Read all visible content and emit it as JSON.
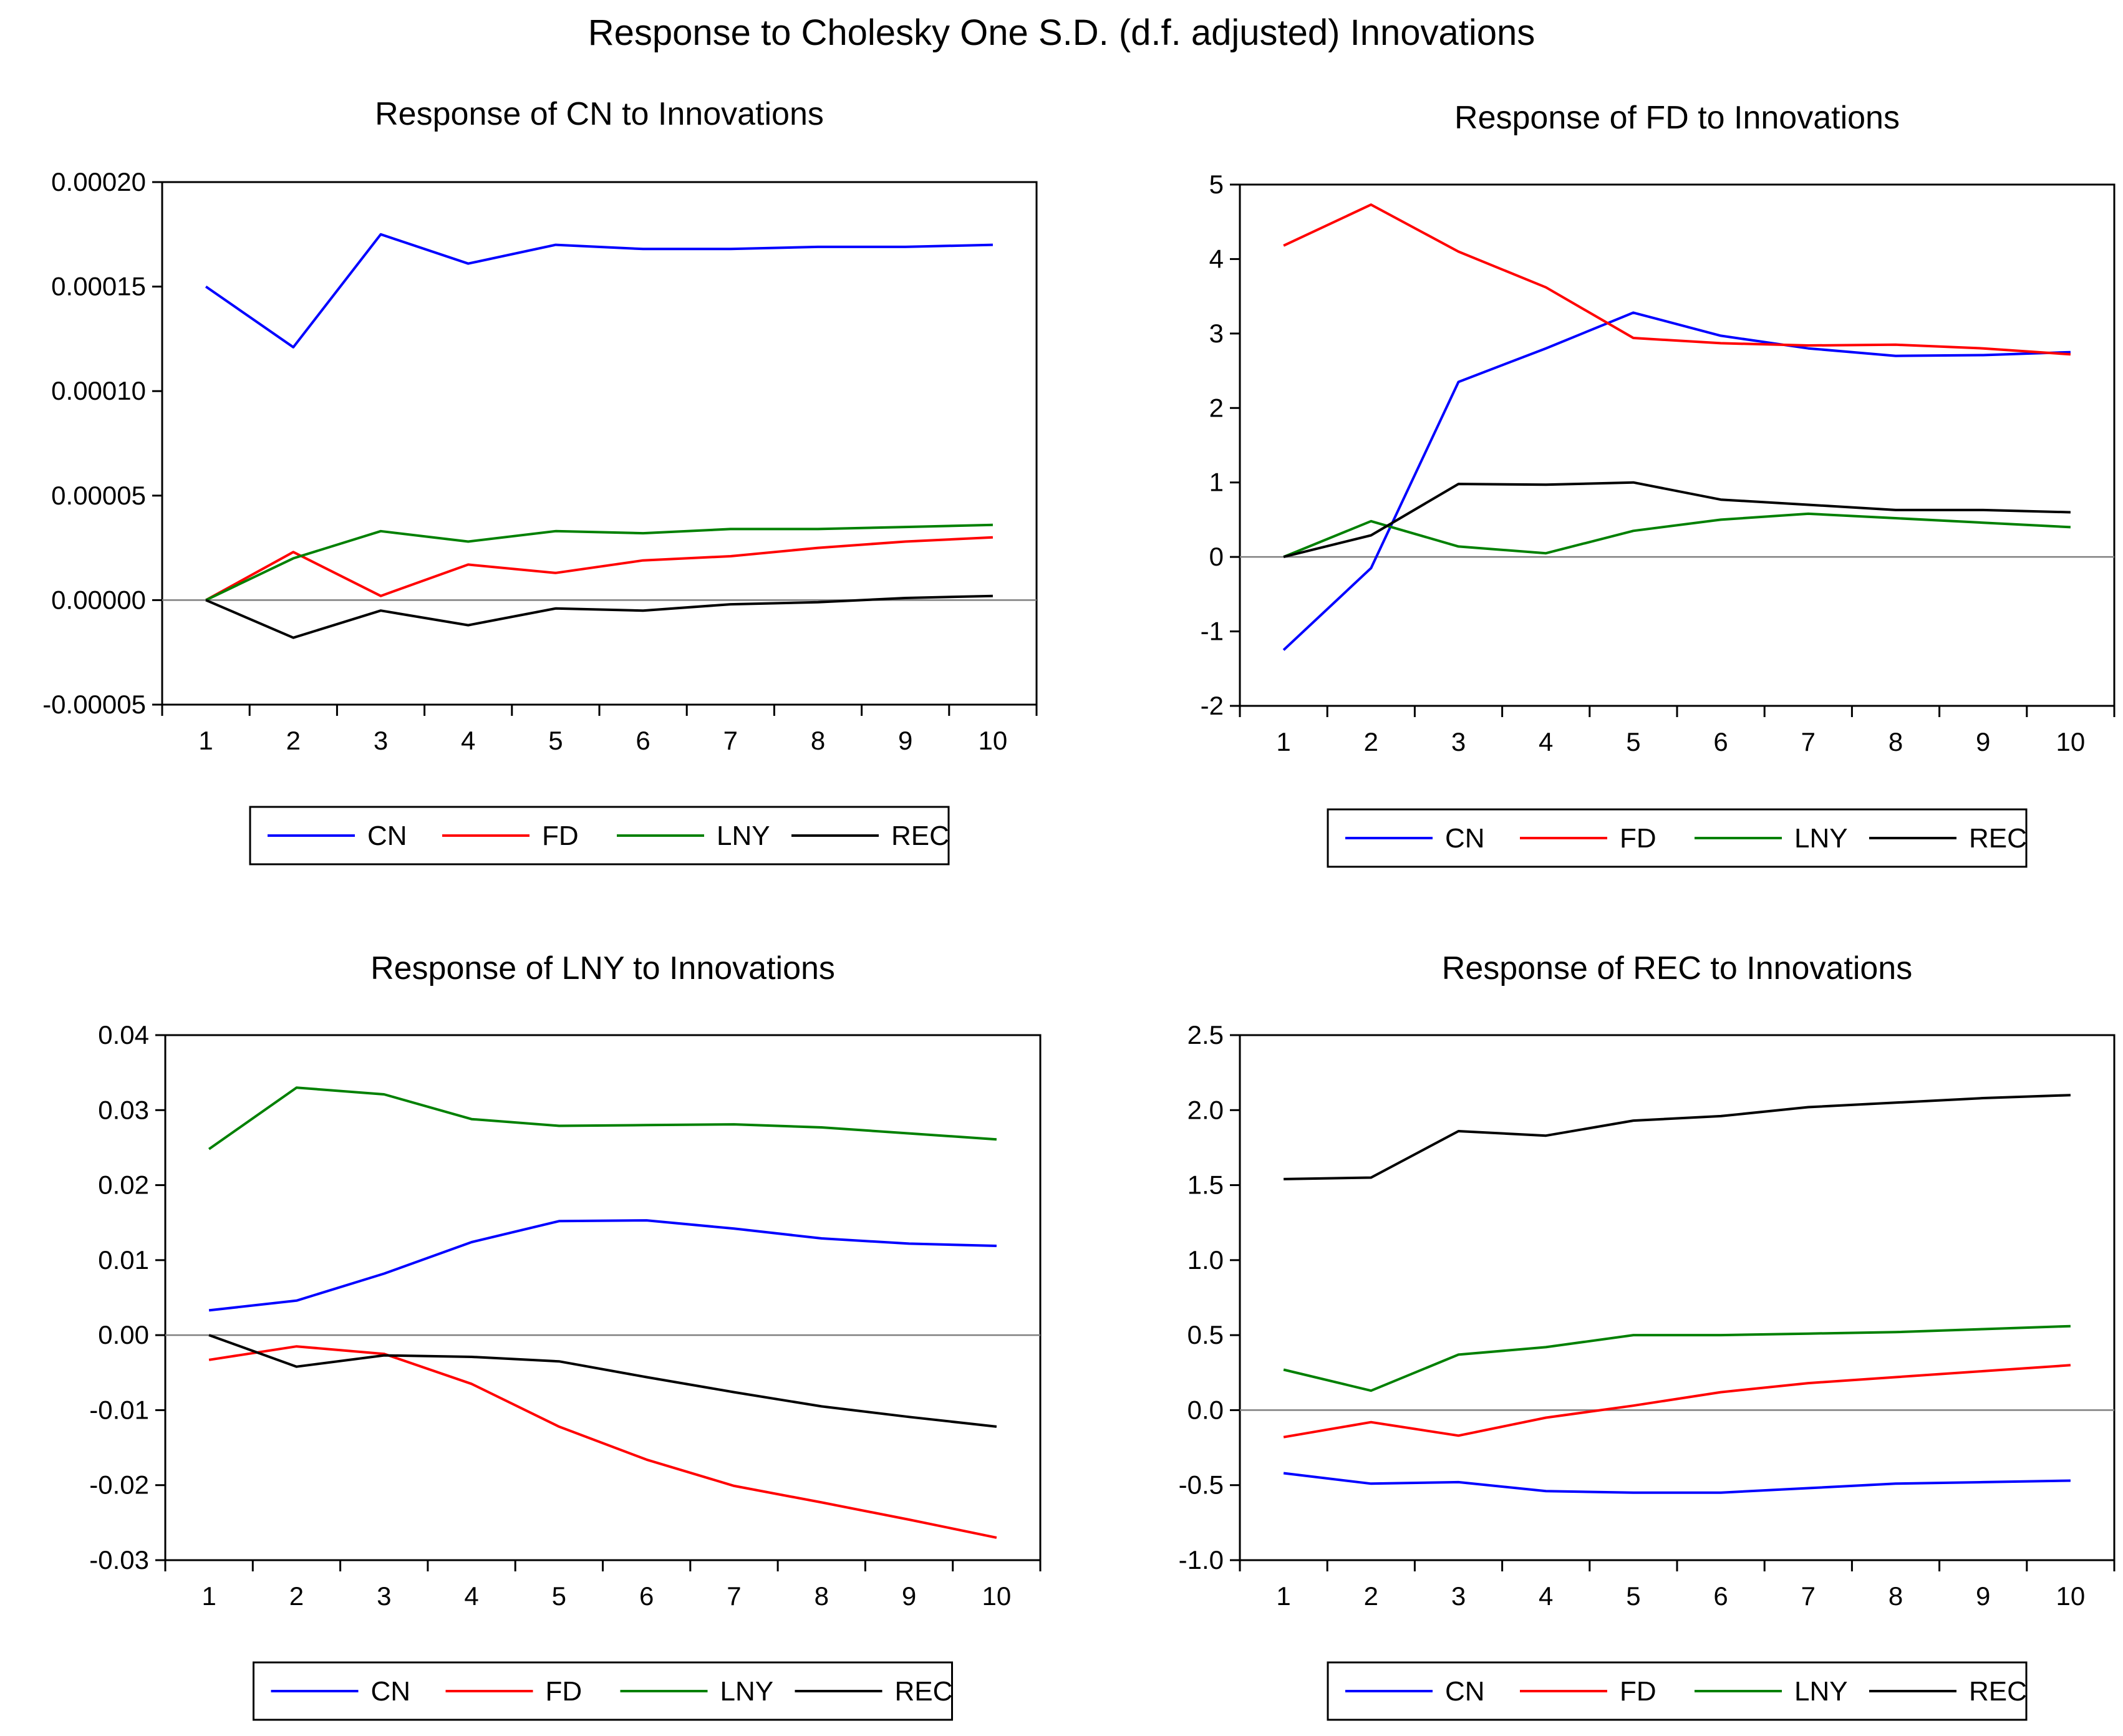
{
  "figure": {
    "main_title": "Response to Cholesky One S.D. (d.f. adjusted) Innovations"
  },
  "colors": {
    "CN": "#0000ff",
    "FD": "#ff0000",
    "LNY": "#008000",
    "REC": "#000000"
  },
  "chart_data": [
    {
      "type": "line",
      "title": "Response of CN to Innovations",
      "x": [
        1,
        2,
        3,
        4,
        5,
        6,
        7,
        8,
        9,
        10
      ],
      "ylim": [
        -5e-05,
        0.0002
      ],
      "yticks": [
        -5e-05,
        0.0,
        5e-05,
        0.0001,
        0.00015,
        0.0002
      ],
      "ytick_labels": [
        "-0.00005",
        "0.00000",
        "0.00005",
        "0.00010",
        "0.00015",
        "0.00020"
      ],
      "legend_position": "bottom",
      "series": [
        {
          "name": "CN",
          "values": [
            0.00015,
            0.000121,
            0.000175,
            0.000161,
            0.00017,
            0.000168,
            0.000168,
            0.000169,
            0.000169,
            0.00017
          ]
        },
        {
          "name": "FD",
          "values": [
            0.0,
            2.3e-05,
            2e-06,
            1.7e-05,
            1.3e-05,
            1.9e-05,
            2.1e-05,
            2.5e-05,
            2.8e-05,
            3e-05
          ]
        },
        {
          "name": "LNY",
          "values": [
            0.0,
            2e-05,
            3.3e-05,
            2.8e-05,
            3.3e-05,
            3.2e-05,
            3.4e-05,
            3.4e-05,
            3.5e-05,
            3.6e-05
          ]
        },
        {
          "name": "REC",
          "values": [
            0.0,
            -1.8e-05,
            -5e-06,
            -1.2e-05,
            -4e-06,
            -5e-06,
            -2e-06,
            -1e-06,
            1e-06,
            2e-06
          ]
        }
      ]
    },
    {
      "type": "line",
      "title": "Response of FD to Innovations",
      "x": [
        1,
        2,
        3,
        4,
        5,
        6,
        7,
        8,
        9,
        10
      ],
      "ylim": [
        -2,
        5
      ],
      "yticks": [
        -2,
        -1,
        0,
        1,
        2,
        3,
        4,
        5
      ],
      "ytick_labels": [
        "-2",
        "-1",
        "0",
        "1",
        "2",
        "3",
        "4",
        "5"
      ],
      "legend_position": "bottom",
      "series": [
        {
          "name": "CN",
          "values": [
            -1.25,
            -0.15,
            2.35,
            2.8,
            3.28,
            2.97,
            2.8,
            2.7,
            2.71,
            2.75
          ]
        },
        {
          "name": "FD",
          "values": [
            4.18,
            4.73,
            4.1,
            3.62,
            2.94,
            2.87,
            2.84,
            2.85,
            2.8,
            2.72
          ]
        },
        {
          "name": "LNY",
          "values": [
            0.0,
            0.48,
            0.14,
            0.05,
            0.35,
            0.5,
            0.58,
            0.52,
            0.46,
            0.4
          ]
        },
        {
          "name": "REC",
          "values": [
            0.0,
            0.29,
            0.98,
            0.97,
            1.0,
            0.77,
            0.7,
            0.63,
            0.63,
            0.6
          ]
        }
      ]
    },
    {
      "type": "line",
      "title": "Response of LNY to Innovations",
      "x": [
        1,
        2,
        3,
        4,
        5,
        6,
        7,
        8,
        9,
        10
      ],
      "ylim": [
        -0.03,
        0.04
      ],
      "yticks": [
        -0.03,
        -0.02,
        -0.01,
        0.0,
        0.01,
        0.02,
        0.03,
        0.04
      ],
      "ytick_labels": [
        "-0.03",
        "-0.02",
        "-0.01",
        "0.00",
        "0.01",
        "0.02",
        "0.03",
        "0.04"
      ],
      "legend_position": "bottom",
      "series": [
        {
          "name": "CN",
          "values": [
            0.0033,
            0.0046,
            0.0082,
            0.0124,
            0.0152,
            0.0153,
            0.0142,
            0.0129,
            0.0122,
            0.0119
          ]
        },
        {
          "name": "FD",
          "values": [
            -0.0033,
            -0.0015,
            -0.0025,
            -0.0065,
            -0.0122,
            -0.0166,
            -0.0201,
            -0.0223,
            -0.0246,
            -0.027
          ]
        },
        {
          "name": "LNY",
          "values": [
            0.0248,
            0.033,
            0.0321,
            0.0288,
            0.0279,
            0.028,
            0.0281,
            0.0277,
            0.0269,
            0.0261
          ]
        },
        {
          "name": "REC",
          "values": [
            0.0,
            -0.0042,
            -0.0027,
            -0.0029,
            -0.0035,
            -0.0056,
            -0.0076,
            -0.0095,
            -0.0109,
            -0.0122
          ]
        }
      ]
    },
    {
      "type": "line",
      "title": "Response of REC to Innovations",
      "x": [
        1,
        2,
        3,
        4,
        5,
        6,
        7,
        8,
        9,
        10
      ],
      "ylim": [
        -1.0,
        2.5
      ],
      "yticks": [
        -1.0,
        -0.5,
        0.0,
        0.5,
        1.0,
        1.5,
        2.0,
        2.5
      ],
      "ytick_labels": [
        "-1.0",
        "-0.5",
        "0.0",
        "0.5",
        "1.0",
        "1.5",
        "2.0",
        "2.5"
      ],
      "legend_position": "bottom",
      "series": [
        {
          "name": "CN",
          "values": [
            -0.42,
            -0.49,
            -0.48,
            -0.54,
            -0.55,
            -0.55,
            -0.52,
            -0.49,
            -0.48,
            -0.47
          ]
        },
        {
          "name": "FD",
          "values": [
            -0.18,
            -0.08,
            -0.17,
            -0.05,
            0.03,
            0.12,
            0.18,
            0.22,
            0.26,
            0.3
          ]
        },
        {
          "name": "LNY",
          "values": [
            0.27,
            0.13,
            0.37,
            0.42,
            0.5,
            0.5,
            0.51,
            0.52,
            0.54,
            0.56
          ]
        },
        {
          "name": "REC",
          "values": [
            1.54,
            1.55,
            1.86,
            1.83,
            1.93,
            1.96,
            2.02,
            2.05,
            2.08,
            2.1
          ]
        }
      ]
    }
  ]
}
